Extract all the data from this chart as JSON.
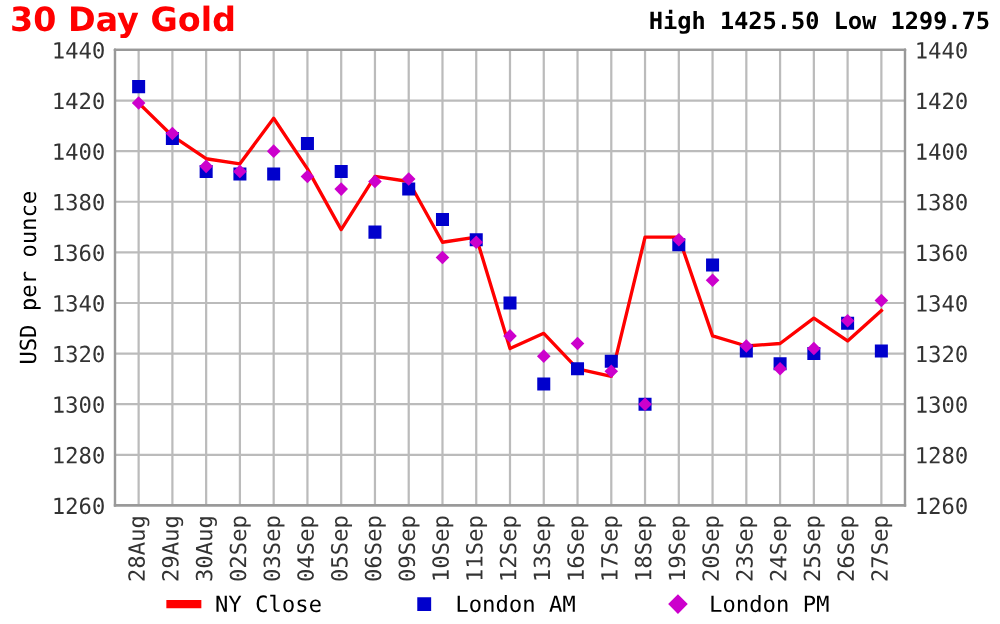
{
  "chart_data": {
    "type": "line",
    "title": "30 Day Gold",
    "subtitle": "High 1425.50 Low 1299.75",
    "ylabel": "USD per ounce",
    "categories": [
      "28Aug",
      "29Aug",
      "30Aug",
      "02Sep",
      "03Sep",
      "04Sep",
      "05Sep",
      "06Sep",
      "09Sep",
      "10Sep",
      "11Sep",
      "12Sep",
      "13Sep",
      "16Sep",
      "17Sep",
      "18Sep",
      "19Sep",
      "20Sep",
      "23Sep",
      "24Sep",
      "25Sep",
      "26Sep",
      "27Sep"
    ],
    "series": [
      {
        "name": "NY Close",
        "color": "#ff0000",
        "marker": "none",
        "values": [
          1419,
          1406,
          1397,
          1395,
          1413,
          1393,
          1369,
          1390,
          1388,
          1364,
          1366,
          1322,
          1328,
          1314,
          1311,
          1366,
          1366,
          1327,
          1323,
          1324,
          1334,
          1325,
          1337
        ]
      },
      {
        "name": "London AM",
        "type": "scatter",
        "color": "#0000cc",
        "marker": "square",
        "values": [
          1425.5,
          1405,
          1392,
          1391,
          1391,
          1403,
          1392,
          1368,
          1385,
          1373,
          1365,
          1340,
          1308,
          1314,
          1317,
          1300,
          1363,
          1355,
          1321,
          1316,
          1320,
          1332,
          1321
        ]
      },
      {
        "name": "London PM",
        "type": "scatter",
        "color": "#cc00cc",
        "marker": "diamond",
        "values": [
          1419,
          1407,
          1394,
          1392,
          1400,
          1390,
          1385,
          1388,
          1389,
          1358,
          1364,
          1327,
          1319,
          1324,
          1313,
          1300,
          1365,
          1349,
          1323,
          1314,
          1322,
          1333,
          1341
        ]
      }
    ],
    "ylim": [
      1260,
      1440
    ],
    "yticks": [
      1260,
      1280,
      1300,
      1320,
      1340,
      1360,
      1380,
      1400,
      1420,
      1440
    ],
    "y2lim": [
      1260,
      1440
    ],
    "y2ticks": [
      1260,
      1280,
      1300,
      1320,
      1340,
      1360,
      1380,
      1400,
      1420,
      1440
    ],
    "grid": true,
    "legend": "bottom"
  }
}
